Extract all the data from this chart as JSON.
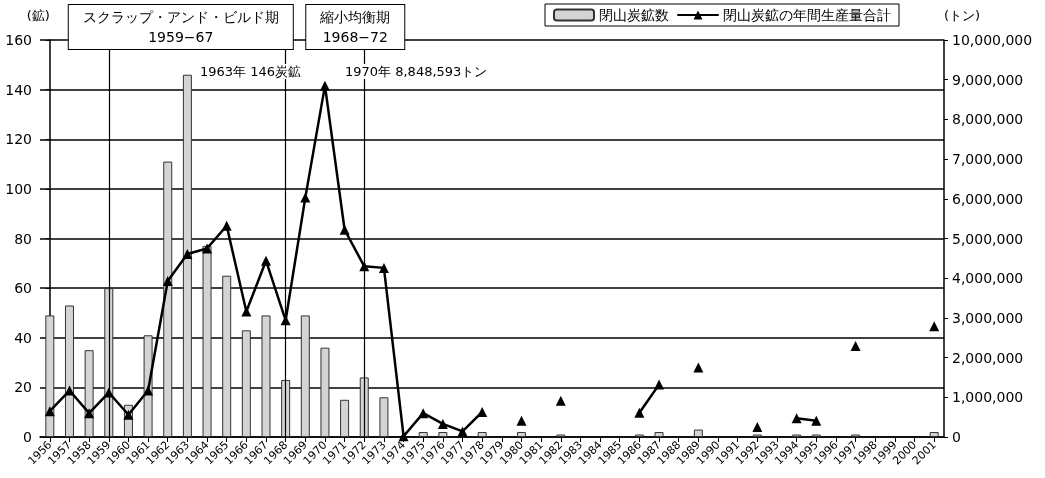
{
  "chart_data": {
    "type": "bar",
    "categories": [
      "1956",
      "1957",
      "1958",
      "1959",
      "1960",
      "1961",
      "1962",
      "1963",
      "1964",
      "1965",
      "1966",
      "1967",
      "1968",
      "1969",
      "1970",
      "1971",
      "1972",
      "1973",
      "1974",
      "1975",
      "1976",
      "1977",
      "1978",
      "1979",
      "1980",
      "1981",
      "1982",
      "1983",
      "1984",
      "1985",
      "1986",
      "1987",
      "1988",
      "1989",
      "1990",
      "1991",
      "1992",
      "1993",
      "1994",
      "1995",
      "1996",
      "1997",
      "1998",
      "1999",
      "2000",
      "2001"
    ],
    "series": [
      {
        "name": "閉山炭鉱数",
        "color": "#d4d4d4",
        "values": [
          49,
          53,
          35,
          60,
          13,
          41,
          111,
          146,
          77,
          65,
          43,
          49,
          23,
          49,
          36,
          15,
          24,
          16,
          null,
          2,
          2,
          null,
          2,
          null,
          2,
          null,
          1,
          null,
          null,
          null,
          1,
          2,
          null,
          3,
          null,
          null,
          1,
          null,
          1,
          1,
          null,
          1,
          null,
          null,
          null,
          2
        ]
      },
      {
        "name": "閉山炭鉱の年間生産量合計",
        "type": "line",
        "axis": "y2",
        "color": "#000000",
        "marker": "triangle",
        "line_style": "solid",
        "values": [
          650000,
          1170000,
          600000,
          1120000,
          560000,
          1170000,
          3930000,
          4610000,
          4750000,
          5320000,
          3160000,
          4440000,
          2940000,
          6030000,
          8850000,
          5220000,
          4300000,
          4260000,
          20000,
          600000,
          330000,
          140000,
          630000,
          null,
          410000,
          null,
          910000,
          null,
          null,
          null,
          610000,
          1320000,
          null,
          1750000,
          null,
          null,
          250000,
          null,
          470000,
          410000,
          null,
          2290000,
          null,
          null,
          null,
          2790000
        ]
      }
    ],
    "ylabel": "(鉱)",
    "y2label": "(トン)",
    "ylim": [
      0,
      160
    ],
    "yticks": [
      0,
      20,
      40,
      60,
      80,
      100,
      120,
      140,
      160
    ],
    "y2lim": [
      0,
      10000000
    ],
    "y2ticks": [
      0,
      {
        "value": 1000000,
        "label": "1,000,000"
      },
      {
        "value": 2000000,
        "label": "2,000,000"
      },
      {
        "value": 3000000,
        "label": "3,000,000"
      },
      {
        "value": 4000000,
        "label": "4,000,000"
      },
      {
        "value": 5000000,
        "label": "5,000,000"
      },
      {
        "value": 6000000,
        "label": "6,000,000"
      },
      {
        "value": 7000000,
        "label": "7,000,000"
      },
      {
        "value": 8000000,
        "label": "8,000,000"
      },
      {
        "value": 9000000,
        "label": "9,000,000"
      },
      {
        "value": 10000000,
        "label": "10,000,000"
      }
    ],
    "grid": "y",
    "legend": "top right",
    "ref_lines": [
      {
        "axis": "x",
        "value": "1959",
        "label": "スクラップ・アンド・ビルド期\n1959−67",
        "color": "#000000"
      },
      {
        "axis": "x",
        "value": "1968",
        "label": null,
        "color": "#000000"
      },
      {
        "axis": "x",
        "value": "1972",
        "label": "縮小均衡期\n1968−72",
        "color": "#000000"
      }
    ],
    "annotations": [
      "1963年 146炭鉱",
      "1970年 8,848,593トン"
    ]
  }
}
